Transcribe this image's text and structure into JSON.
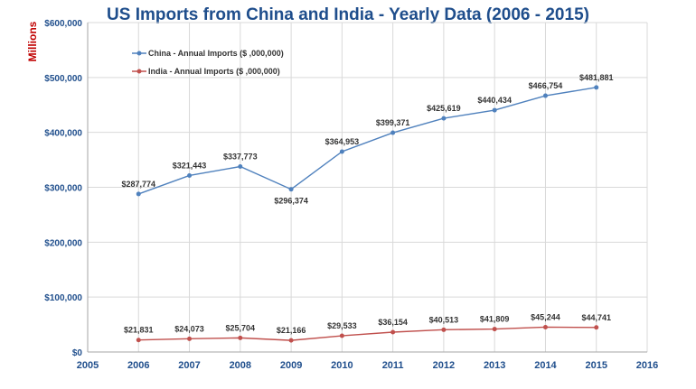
{
  "chart_data": {
    "type": "line",
    "title": "US Imports from China and India - Yearly Data (2006 - 2015)",
    "ylabel": "Millions",
    "xlabel": "",
    "xlim": [
      2005,
      2016
    ],
    "ylim": [
      0,
      600000
    ],
    "x_ticks": [
      2005,
      2006,
      2007,
      2008,
      2009,
      2010,
      2011,
      2012,
      2013,
      2014,
      2015,
      2016
    ],
    "y_ticks": [
      0,
      100000,
      200000,
      300000,
      400000,
      500000,
      600000
    ],
    "y_tick_labels": [
      "$0",
      "$100,000",
      "$200,000",
      "$300,000",
      "$400,000",
      "$500,000",
      "$600,000"
    ],
    "grid": true,
    "legend": "top-left",
    "x": [
      2006,
      2007,
      2008,
      2009,
      2010,
      2011,
      2012,
      2013,
      2014,
      2015
    ],
    "series": [
      {
        "name": "China - Annual Imports ($ ,000,000)",
        "color": "#4f81bd",
        "values": [
          287774,
          321443,
          337773,
          296374,
          364953,
          399371,
          425619,
          440434,
          466754,
          481881
        ],
        "labels": [
          "$287,774",
          "$321,443",
          "$337,773",
          "$296,374",
          "$364,953",
          "$399,371",
          "$425,619",
          "$440,434",
          "$466,754",
          "$481,881"
        ]
      },
      {
        "name": "India - Annual Imports ($ ,000,000)",
        "color": "#c0504d",
        "values": [
          21831,
          24073,
          25704,
          21166,
          29533,
          36154,
          40513,
          41809,
          45244,
          44741
        ],
        "labels": [
          "$21,831",
          "$24,073",
          "$25,704",
          "$21,166",
          "$29,533",
          "$36,154",
          "$40,513",
          "$41,809",
          "$45,244",
          "$44,741"
        ]
      }
    ]
  }
}
